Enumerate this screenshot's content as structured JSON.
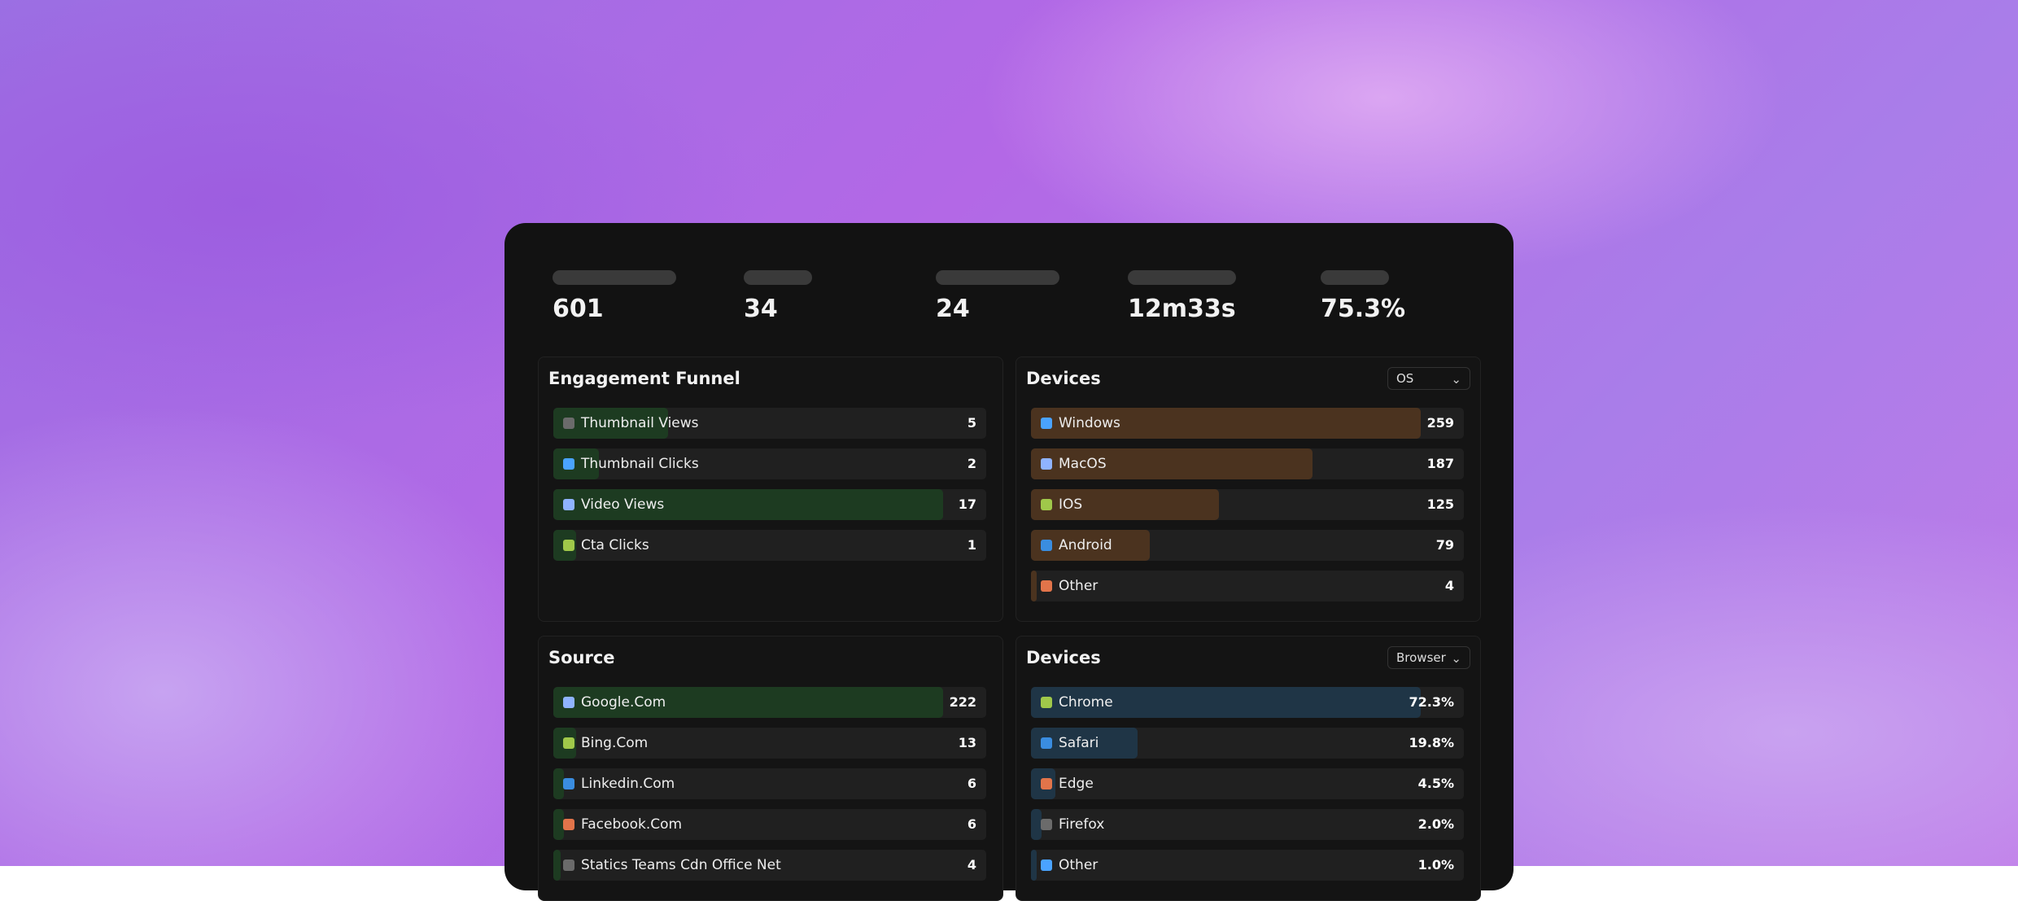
{
  "stats": [
    {
      "value": "601"
    },
    {
      "value": "34"
    },
    {
      "value": "24"
    },
    {
      "value": "12m33s"
    },
    {
      "value": "75.3%"
    }
  ],
  "cards": [
    {
      "title": "Engagement Funnel",
      "color": "#1d3b21",
      "rows": [
        {
          "label": "Thumbnail Views",
          "value": 5
        },
        {
          "label": "Thumbnail Clicks",
          "value": 2
        },
        {
          "label": "Video Views",
          "value": 17
        },
        {
          "label": "Cta Clicks",
          "value": 1
        }
      ]
    },
    {
      "title": "Devices",
      "dropdown": "OS",
      "color": "#4b331f",
      "rows": [
        {
          "label": "Windows",
          "value": 259
        },
        {
          "label": "MacOS",
          "value": 187
        },
        {
          "label": "IOS",
          "value": 125
        },
        {
          "label": "Android",
          "value": 79
        },
        {
          "label": "Other",
          "value": 4
        }
      ]
    },
    {
      "title": "Source",
      "color": "#1d3b21",
      "rows": [
        {
          "label": "Google.Com",
          "value": 222
        },
        {
          "label": "Bing.Com",
          "value": 13
        },
        {
          "label": "Linkedin.Com",
          "value": 6
        },
        {
          "label": "Facebook.Com",
          "value": 6
        },
        {
          "label": "Statics Teams Cdn Office Net",
          "value": 4
        }
      ]
    },
    {
      "title": "Devices",
      "dropdown": "Browser",
      "color": "#1f3546",
      "rows": [
        {
          "label": "Chrome",
          "value": 72.3,
          "value_label": "72.3%"
        },
        {
          "label": "Safari",
          "value": 19.8,
          "value_label": "19.8%"
        },
        {
          "label": "Edge",
          "value": 4.5,
          "value_label": "4.5%"
        },
        {
          "label": "Firefox",
          "value": 2.0,
          "value_label": "2.0%"
        },
        {
          "label": "Other",
          "value": 1.0,
          "value_label": "1.0%"
        }
      ]
    }
  ]
}
